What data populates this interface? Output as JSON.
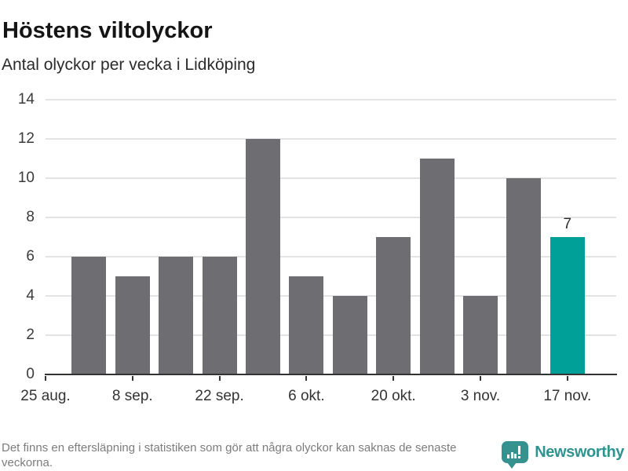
{
  "header": {
    "title": "Höstens viltolyckor",
    "subtitle": "Antal olyckor per vecka i Lidköping"
  },
  "chart_data": {
    "type": "bar",
    "title": "Höstens viltolyckor",
    "subtitle": "Antal olyckor per vecka i Lidköping",
    "ylabel": "",
    "xlabel": "",
    "ylim": [
      0,
      14
    ],
    "yticks": [
      0,
      2,
      4,
      6,
      8,
      10,
      12,
      14
    ],
    "grid": "horizontal",
    "num_slots": 13,
    "values": [
      null,
      6,
      5,
      6,
      6,
      12,
      5,
      4,
      7,
      11,
      4,
      10,
      7
    ],
    "xticks": [
      {
        "slot": 0,
        "label": "25 aug."
      },
      {
        "slot": 2,
        "label": "8 sep."
      },
      {
        "slot": 4,
        "label": "22 sep."
      },
      {
        "slot": 6,
        "label": "6 okt."
      },
      {
        "slot": 8,
        "label": "20 okt."
      },
      {
        "slot": 10,
        "label": "3 nov."
      },
      {
        "slot": 12,
        "label": "17 nov."
      }
    ],
    "highlight_slot": 12,
    "highlight_value_label": "7",
    "bar_color": "#6e6e72",
    "highlight_color": "#00a099",
    "gridline_color": "#e3e3e3",
    "axis_color": "#333333",
    "legend": null
  },
  "footer": {
    "note": "Det finns en eftersläpning i statistiken som gör att några olyckor kan saknas de senaste veckorna.",
    "brand": "Newsworthy"
  },
  "icons": {
    "logo_icon": "speech-bubble-bar-chart-exclamation"
  },
  "colors": {
    "accent_teal": "#00a099",
    "bar_gray": "#6e6e72",
    "brand_teal": "#35928f",
    "text_dark": "#151515",
    "text_muted": "#7c7c7c"
  }
}
